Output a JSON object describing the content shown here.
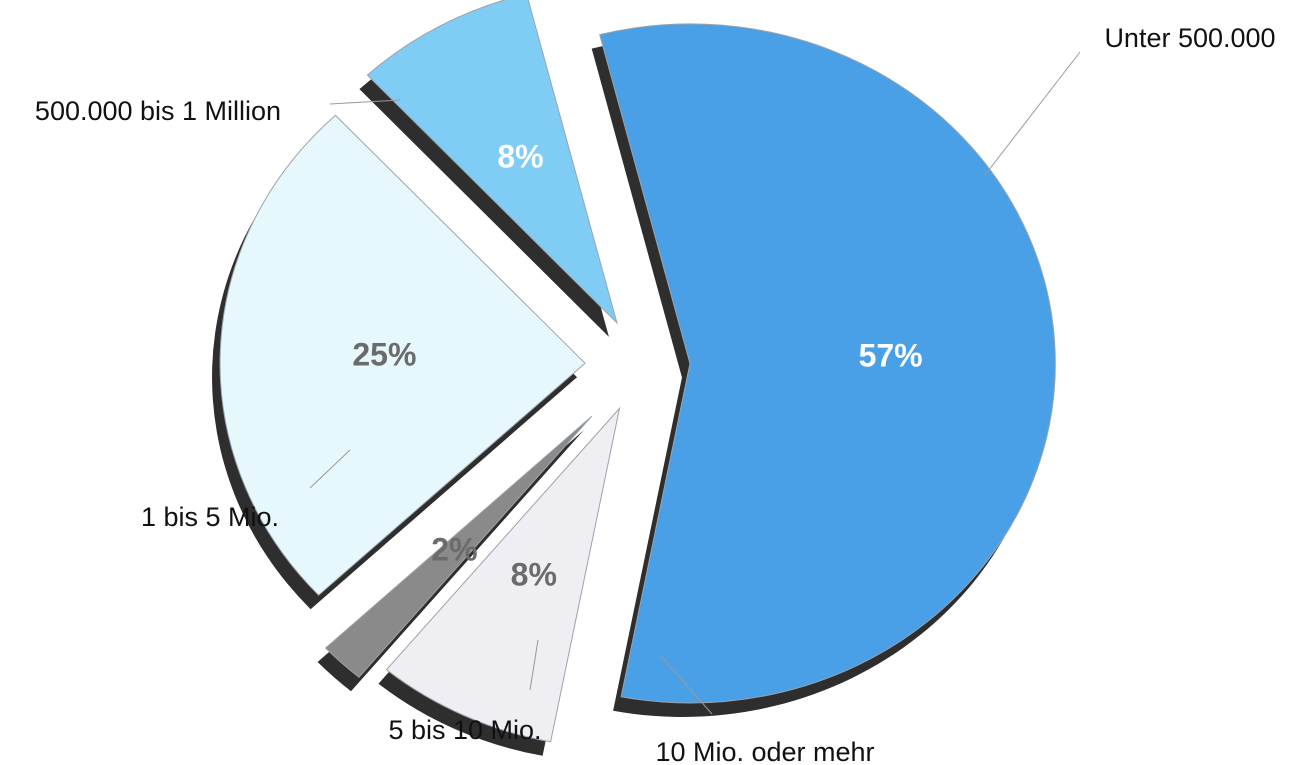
{
  "chart_data": {
    "type": "pie",
    "exploded": true,
    "three_d": true,
    "title": "",
    "categories": [
      "Unter 500.000",
      "10 Mio. oder mehr",
      "5 bis 10 Mio.",
      "1 bis 5 Mio.",
      "500.000 bis 1 Million"
    ],
    "values": [
      57,
      8,
      2,
      25,
      8
    ],
    "value_labels": [
      "57%",
      "8%",
      "2%",
      "25%",
      "8%"
    ],
    "colors": [
      "#4aa0e6",
      "#eeeef3",
      "#8a8a8a",
      "#e6f8fc",
      "#7fcdf4"
    ],
    "value_label_colors": [
      "#ffffff",
      "#6b6b6b",
      "#6b6b6b",
      "#6b6b6b",
      "#ffffff"
    ],
    "shadow_color": "#2e2e2e"
  }
}
